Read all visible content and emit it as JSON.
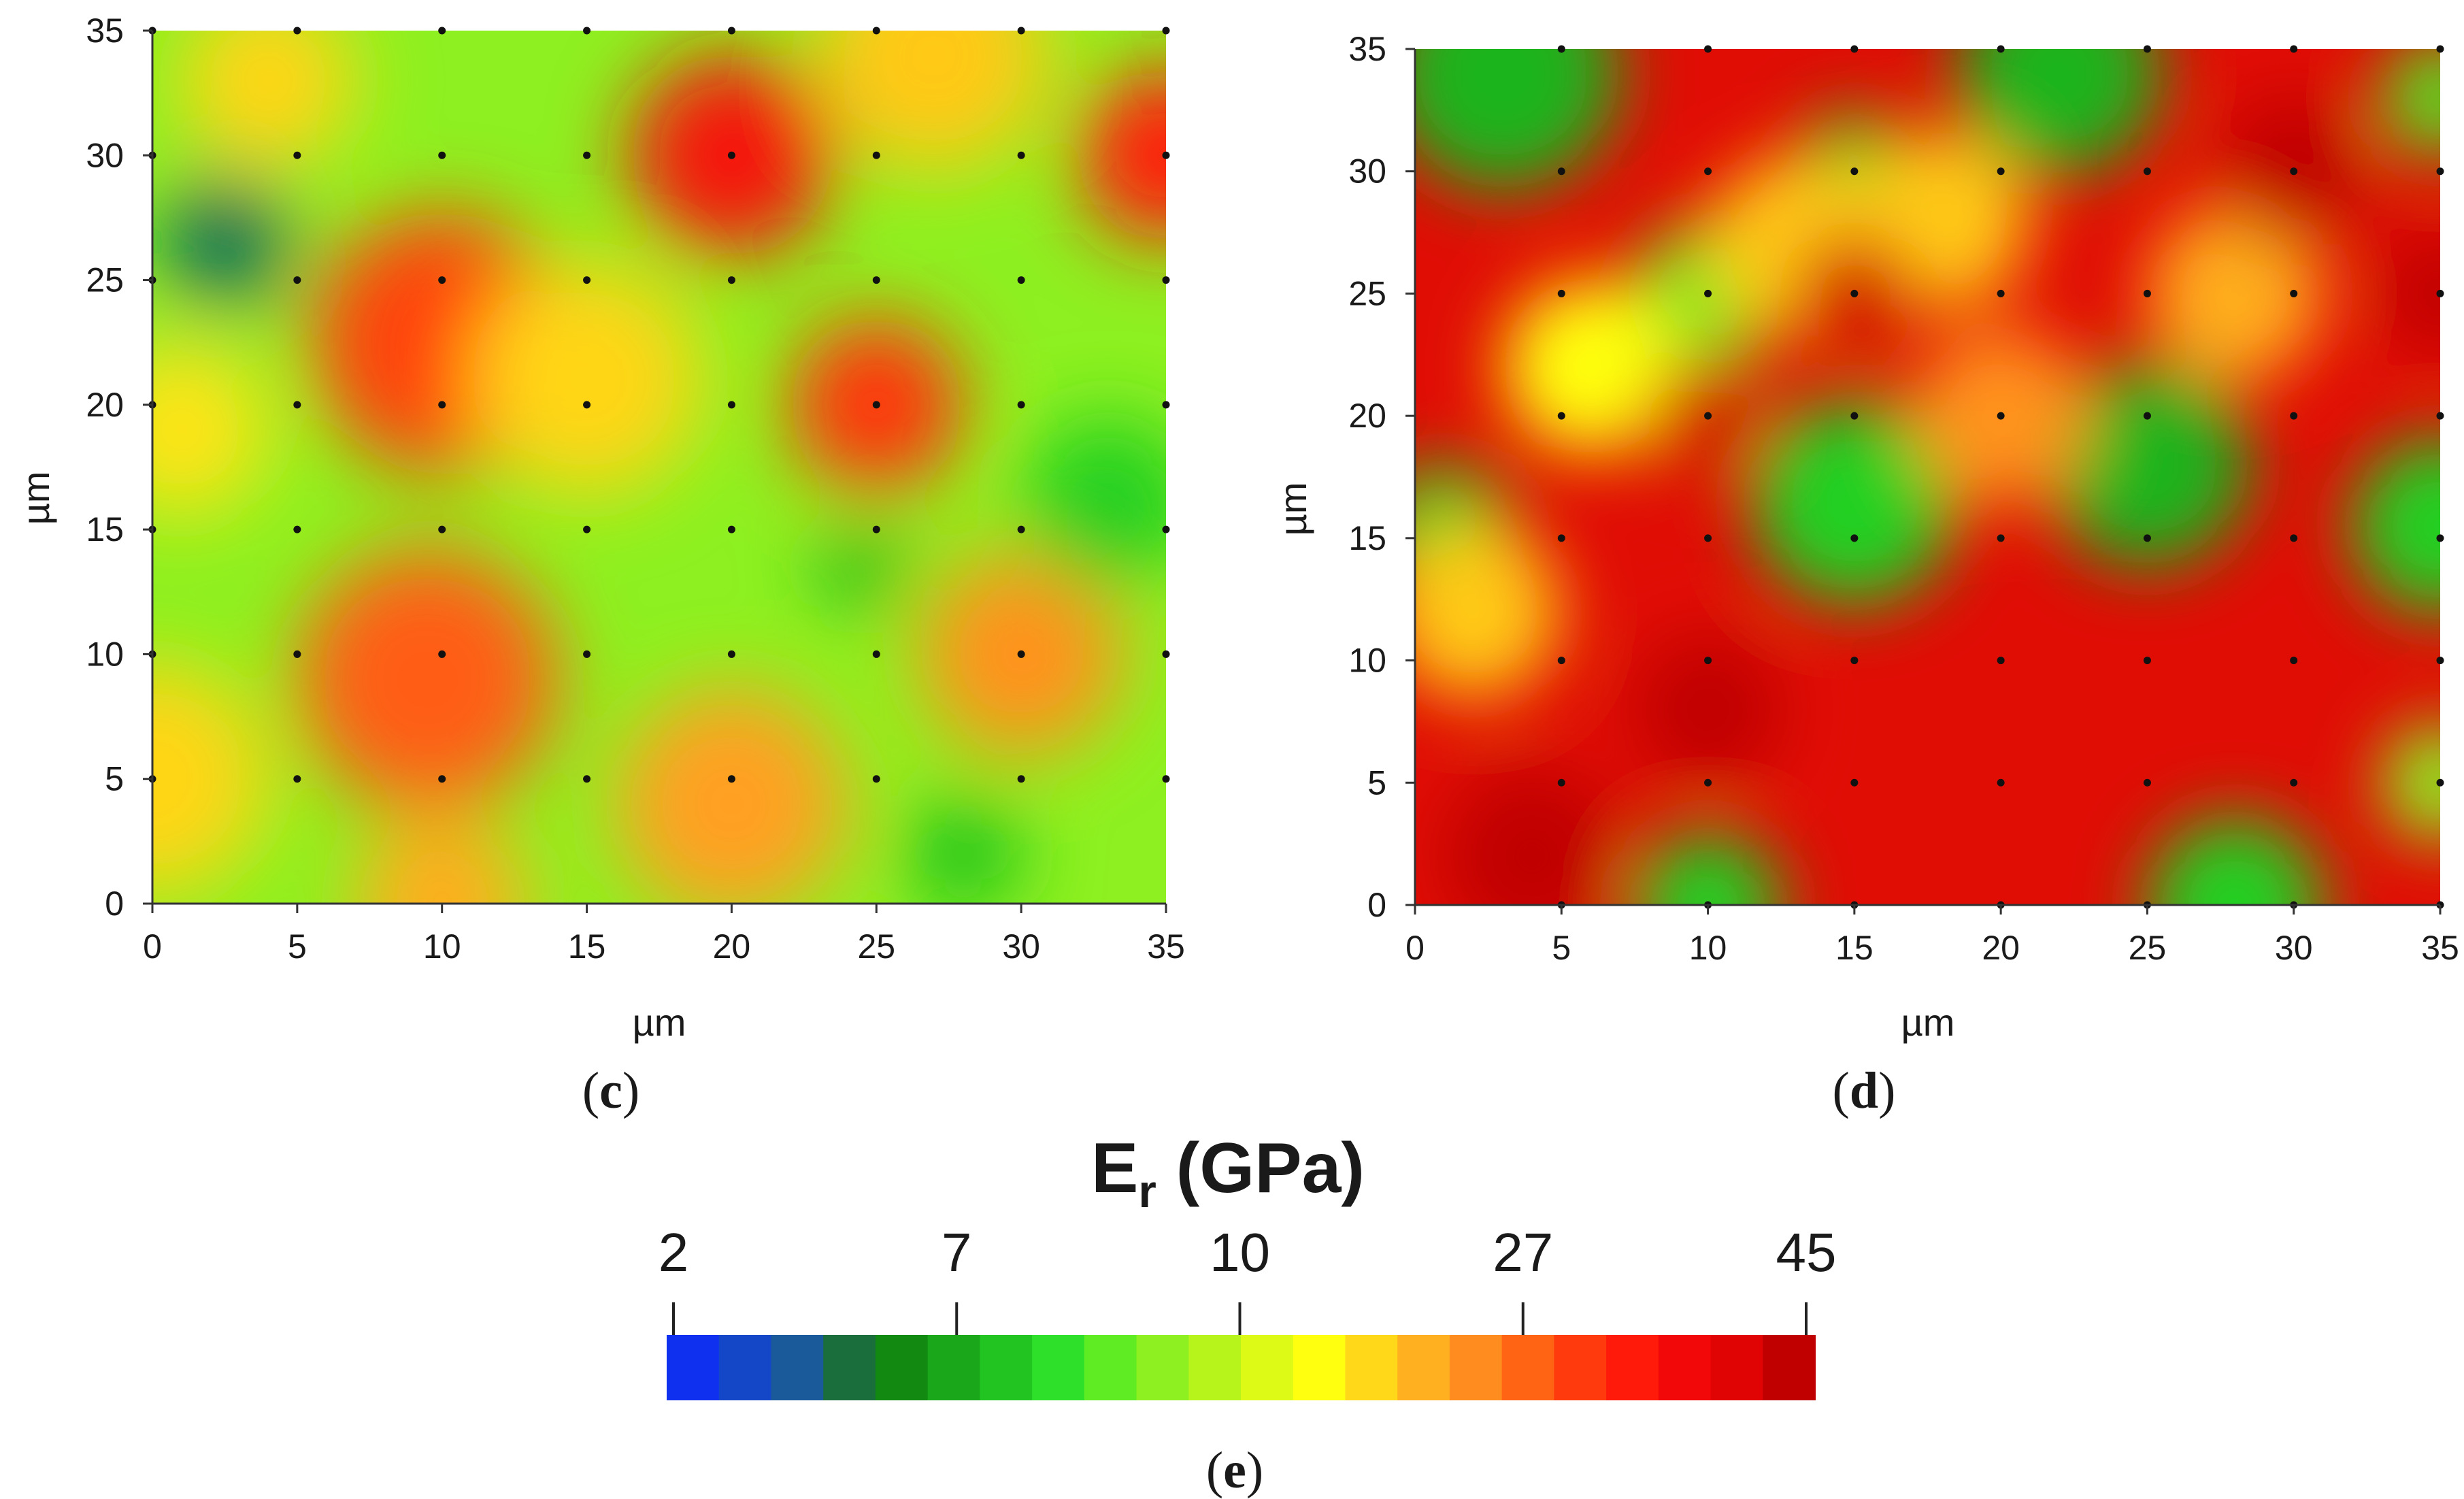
{
  "colors": {
    "blue": "#1030f0",
    "dark_green": "#128a12",
    "green": "#22d022",
    "light_green": "#8ef020",
    "yellow": "#ffff10",
    "orange": "#ffa020",
    "red": "#ff1a0a",
    "dark_red": "#c00000"
  },
  "chart_data": [
    {
      "type": "heatmap",
      "panel": "(c)",
      "panel_letter": "c",
      "xlabel": "µm",
      "ylabel": "µm",
      "xlim": [
        0,
        35
      ],
      "ylim": [
        0,
        35
      ],
      "xticks": [
        0,
        5,
        10,
        15,
        20,
        25,
        30,
        35
      ],
      "yticks": [
        0,
        5,
        10,
        15,
        20,
        25,
        30,
        35
      ],
      "measurement_grid": {
        "x": [
          0,
          5,
          10,
          15,
          20,
          25,
          30,
          35
        ],
        "y": [
          5,
          10,
          15,
          20,
          25,
          30,
          35
        ]
      },
      "unit": "GPa",
      "background_value": 8,
      "features": [
        {
          "x": 10,
          "y": 22.5,
          "value": 24,
          "radius": 4.5
        },
        {
          "x": 20,
          "y": 30,
          "value": 30,
          "radius": 3.5
        },
        {
          "x": 25,
          "y": 20,
          "value": 25,
          "radius": 3
        },
        {
          "x": 35,
          "y": 30,
          "value": 27,
          "radius": 3
        },
        {
          "x": 9.5,
          "y": 9,
          "value": 22,
          "radius": 4.5
        },
        {
          "x": 30,
          "y": 10,
          "value": 18,
          "radius": 3.5
        },
        {
          "x": 20,
          "y": 4,
          "value": 17,
          "radius": 4
        },
        {
          "x": 10,
          "y": 0,
          "value": 16,
          "radius": 3
        },
        {
          "x": 15,
          "y": 21,
          "value": 13,
          "radius": 4
        },
        {
          "x": 27,
          "y": 34,
          "value": 14,
          "radius": 4
        },
        {
          "x": 4,
          "y": 33,
          "value": 13,
          "radius": 3
        },
        {
          "x": 1,
          "y": 19,
          "value": 12,
          "radius": 3
        },
        {
          "x": 0,
          "y": 5,
          "value": 13,
          "radius": 4
        },
        {
          "x": 2.5,
          "y": 26.5,
          "value": 3,
          "radius": 2.2
        },
        {
          "x": 24.5,
          "y": 13.5,
          "value": 5,
          "radius": 1.5
        },
        {
          "x": 33,
          "y": 16,
          "value": 6,
          "radius": 3
        },
        {
          "x": 28,
          "y": 2,
          "value": 5.5,
          "radius": 2
        }
      ]
    },
    {
      "type": "heatmap",
      "panel": "(d)",
      "panel_letter": "d",
      "xlabel": "µm",
      "ylabel": "µm",
      "xlim": [
        0,
        35
      ],
      "ylim": [
        0,
        35
      ],
      "xticks": [
        0,
        5,
        10,
        15,
        20,
        25,
        30,
        35
      ],
      "yticks": [
        0,
        5,
        10,
        15,
        20,
        25,
        30,
        35
      ],
      "measurement_grid": {
        "x": [
          5,
          10,
          15,
          20,
          25,
          30,
          35
        ],
        "y": [
          0,
          5,
          10,
          15,
          20,
          25,
          30,
          35
        ]
      },
      "unit": "GPa",
      "background_value": 36,
      "features": [
        {
          "x": 15,
          "y": 16.5,
          "value": 6,
          "radius": 3.5
        },
        {
          "x": 25,
          "y": 18,
          "value": 5,
          "radius": 3.5
        },
        {
          "x": 15,
          "y": 30,
          "value": 6,
          "radius": 2
        },
        {
          "x": 10,
          "y": 25,
          "value": 7.5,
          "radius": 2.5
        },
        {
          "x": 1,
          "y": 15,
          "value": 6,
          "radius": 2.5
        },
        {
          "x": 35,
          "y": 15.5,
          "value": 6,
          "radius": 3
        },
        {
          "x": 3,
          "y": 34,
          "value": 5,
          "radius": 4
        },
        {
          "x": 22,
          "y": 34,
          "value": 5,
          "radius": 3.5
        },
        {
          "x": 35,
          "y": 33,
          "value": 7,
          "radius": 2
        },
        {
          "x": 10,
          "y": 0,
          "value": 6,
          "radius": 2.5
        },
        {
          "x": 28,
          "y": 0,
          "value": 6,
          "radius": 3
        },
        {
          "x": 35,
          "y": 5,
          "value": 8,
          "radius": 2
        },
        {
          "x": 6,
          "y": 22,
          "value": 10,
          "radius": 3
        },
        {
          "x": 2,
          "y": 12,
          "value": 14,
          "radius": 3
        },
        {
          "x": 13,
          "y": 27,
          "value": 14,
          "radius": 3
        },
        {
          "x": 18,
          "y": 28,
          "value": 14,
          "radius": 3
        },
        {
          "x": 28,
          "y": 25,
          "value": 16,
          "radius": 3
        },
        {
          "x": 20,
          "y": 20,
          "value": 18,
          "radius": 3
        },
        {
          "x": 30,
          "y": 30,
          "value": 45,
          "radius": 2.5
        },
        {
          "x": 35,
          "y": 25,
          "value": 45,
          "radius": 2
        },
        {
          "x": 10,
          "y": 8,
          "value": 45,
          "radius": 2.5
        },
        {
          "x": 4,
          "y": 2,
          "value": 45,
          "radius": 3
        },
        {
          "x": 15,
          "y": 25,
          "value": 40,
          "radius": 2
        },
        {
          "x": 10,
          "y": 20,
          "value": 40,
          "radius": 2
        }
      ]
    }
  ],
  "colorbar": {
    "panel": "(e)",
    "panel_letter": "e",
    "title_main": "E",
    "title_sub": "r",
    "title_unit": " (GPa)",
    "ticks": [
      {
        "label": "2",
        "value": 2
      },
      {
        "label": "7",
        "value": 7
      },
      {
        "label": "10",
        "value": 10
      },
      {
        "label": "27",
        "value": 27
      },
      {
        "label": "45",
        "value": 45
      }
    ],
    "bands": [
      "#1030f0",
      "#1446c8",
      "#1a5a9a",
      "#1a6e3c",
      "#128a12",
      "#1aa81a",
      "#22c422",
      "#2ee02a",
      "#60ec22",
      "#8ef020",
      "#b6f41c",
      "#dcfa16",
      "#ffff10",
      "#ffd81a",
      "#ffb020",
      "#ff8c1e",
      "#ff6414",
      "#ff3a0c",
      "#ff1a0a",
      "#f20808",
      "#e00404",
      "#c00000"
    ]
  }
}
